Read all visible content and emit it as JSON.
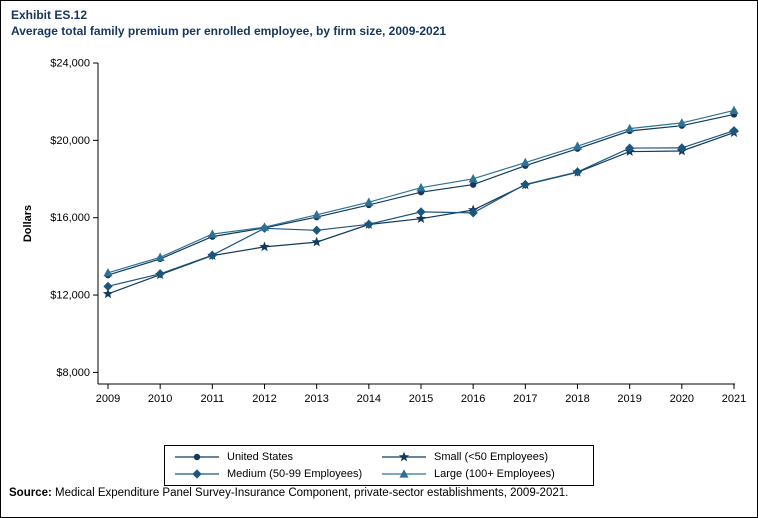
{
  "title": {
    "line1": "Exhibit ES.12",
    "line2": "Average total family premium per enrolled employee, by firm size, 2009-2021"
  },
  "source": {
    "label": "Source:",
    "text": " Medical Expenditure Panel Survey-Insurance Component, private-sector establishments, 2009-2021."
  },
  "chart_data": {
    "type": "line",
    "title": "Average total family premium per enrolled employee, by firm size, 2009-2021",
    "xlabel": "",
    "ylabel": "Dollars",
    "x": [
      2009,
      2010,
      2011,
      2012,
      2013,
      2014,
      2015,
      2016,
      2017,
      2018,
      2019,
      2020,
      2021
    ],
    "ylim": [
      7400,
      24000
    ],
    "yticks": [
      8000,
      12000,
      16000,
      20000,
      24000
    ],
    "ytick_labels": [
      "$8,000",
      "$12,000",
      "$16,000",
      "$20,000",
      "$24,000"
    ],
    "grid": false,
    "legend_position": "bottom",
    "series": [
      {
        "name": "United States",
        "marker": "circle",
        "color": "#123a5c",
        "values": [
          13030,
          13870,
          15020,
          15470,
          16030,
          16660,
          17320,
          17710,
          18690,
          19570,
          20490,
          20760,
          21340
        ]
      },
      {
        "name": "Small (<50 Employees)",
        "marker": "star",
        "color": "#123a5c",
        "values": [
          12060,
          13050,
          14040,
          14490,
          14740,
          15650,
          15950,
          16400,
          17700,
          18350,
          19420,
          19450,
          20400
        ]
      },
      {
        "name": "Medium (50-99 Employees)",
        "marker": "diamond",
        "color": "#1b567c",
        "values": [
          12450,
          13100,
          14060,
          15450,
          15350,
          15660,
          16300,
          16250,
          17720,
          18370,
          19600,
          19610,
          20500
        ]
      },
      {
        "name": "Large (100+ Employees)",
        "marker": "triangle",
        "color": "#2e7296",
        "values": [
          13150,
          13950,
          15150,
          15510,
          16150,
          16800,
          17550,
          18010,
          18850,
          19700,
          20610,
          20900,
          21550
        ]
      }
    ]
  }
}
